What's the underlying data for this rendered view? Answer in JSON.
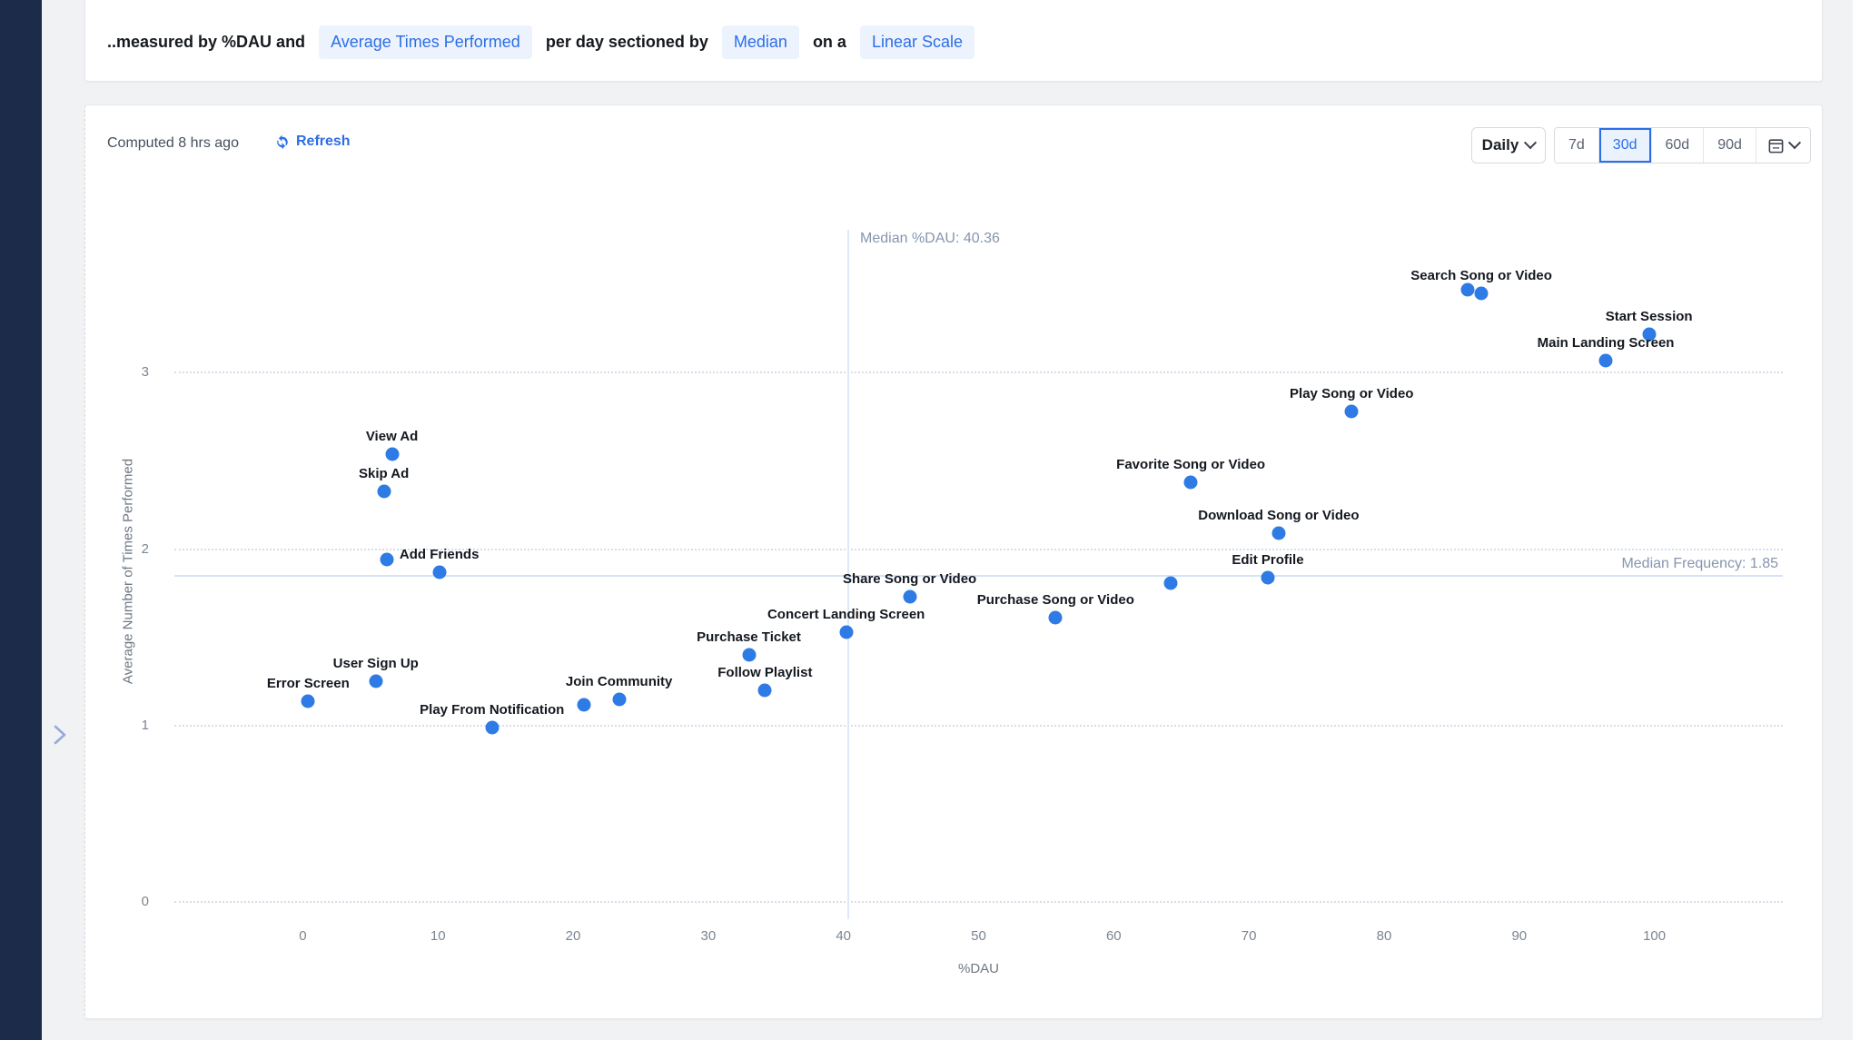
{
  "query_bar": {
    "prefix": "..measured by %DAU and",
    "metric_pill": "Average Times Performed",
    "middle": "per day sectioned by",
    "section_pill": "Median",
    "connector": "on a",
    "scale_pill": "Linear Scale"
  },
  "chart_panel": {
    "computed_label": "Computed 8 hrs ago",
    "refresh_label": "Refresh",
    "granularity_label": "Daily",
    "date_ranges": [
      "7d",
      "30d",
      "60d",
      "90d"
    ],
    "selected_range": "30d"
  },
  "colors": {
    "accent_blue": "#2c6ee8",
    "dot_blue": "#2e7be5",
    "pill_bg": "#edf3fd",
    "sidebar_navy": "#1d2b4a",
    "median_line_blue": "#d5e3f5",
    "page_bg": "#f1f2f4"
  },
  "chart_data": {
    "type": "scatter",
    "title": "",
    "xlabel": "%DAU",
    "ylabel": "Average Number of Times Performed",
    "x_ticks": [
      0,
      10,
      20,
      30,
      40,
      50,
      60,
      70,
      80,
      90,
      100
    ],
    "y_ticks": [
      0,
      1,
      2,
      3
    ],
    "xlim": [
      -9.5,
      109.5
    ],
    "ylim": [
      -0.06,
      3.81
    ],
    "grid": "horizontal-dotted",
    "legend": "none",
    "median_lines": {
      "x": {
        "value": 40.36,
        "label": "Median %DAU: 40.36"
      },
      "y": {
        "value": 1.85,
        "label": "Median Frequency: 1.85"
      }
    },
    "points": [
      {
        "label": "Search Song or Video",
        "x": 87.2,
        "y": 3.45
      },
      {
        "label": "",
        "x": 86.2,
        "y": 3.47
      },
      {
        "label": "Start Session",
        "x": 99.6,
        "y": 3.22
      },
      {
        "label": "Main Landing Screen",
        "x": 96.4,
        "y": 3.07
      },
      {
        "label": "Play Song or Video",
        "x": 77.6,
        "y": 2.78
      },
      {
        "label": "View Ad",
        "x": 6.6,
        "y": 2.54
      },
      {
        "label": "Skip Ad",
        "x": 6.0,
        "y": 2.33
      },
      {
        "label": "Favorite Song or Video",
        "x": 65.7,
        "y": 2.38
      },
      {
        "label": "Download Song or Video",
        "x": 72.2,
        "y": 2.09
      },
      {
        "label": "",
        "x": 6.2,
        "y": 1.94
      },
      {
        "label": "Add Friends",
        "x": 10.1,
        "y": 1.87
      },
      {
        "label": "Edit Profile",
        "x": 71.4,
        "y": 1.84
      },
      {
        "label": "",
        "x": 64.2,
        "y": 1.81
      },
      {
        "label": "Share Song or Video",
        "x": 44.9,
        "y": 1.73
      },
      {
        "label": "Purchase Song or Video",
        "x": 55.7,
        "y": 1.61
      },
      {
        "label": "Concert Landing Screen",
        "x": 40.2,
        "y": 1.53
      },
      {
        "label": "Purchase Ticket",
        "x": 33.0,
        "y": 1.4
      },
      {
        "label": "User Sign Up",
        "x": 5.4,
        "y": 1.25
      },
      {
        "label": "Follow Playlist",
        "x": 34.2,
        "y": 1.2
      },
      {
        "label": "Join Community",
        "x": 23.4,
        "y": 1.15
      },
      {
        "label": "",
        "x": 20.8,
        "y": 1.12
      },
      {
        "label": "Error Screen",
        "x": 0.4,
        "y": 1.14
      },
      {
        "label": "Play From Notification",
        "x": 14.0,
        "y": 0.99
      }
    ]
  }
}
